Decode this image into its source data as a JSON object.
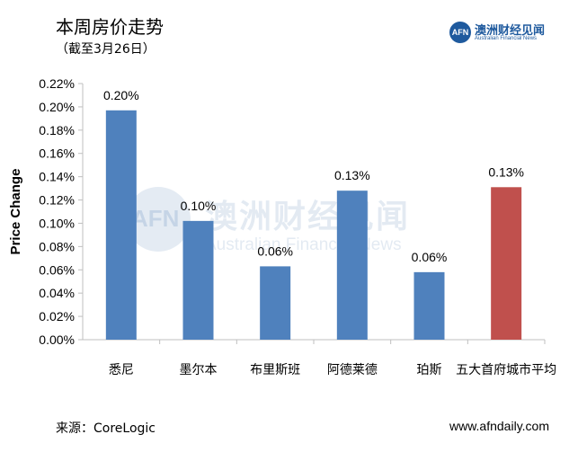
{
  "header": {
    "title": "本周房价走势",
    "subtitle": "（截至3月26日）"
  },
  "logo": {
    "mark": "AFN",
    "name_cn": "澳洲财经见闻",
    "name_en": "Australian Financial News"
  },
  "watermark": {
    "mark": "AFN",
    "name_cn": "澳洲财经见闻",
    "name_en": "Australian Financial News"
  },
  "footer": {
    "source": "来源：CoreLogic",
    "url": "www.afndaily.com"
  },
  "colors": {
    "bar": "#4f81bd",
    "highlight": "#c0504d",
    "axis": "#bfbfbf"
  },
  "chart_data": {
    "type": "bar",
    "title": "",
    "xlabel": "",
    "ylabel": "Price Change",
    "categories": [
      "悉尼",
      "墨尔本",
      "布里斯班",
      "阿德莱德",
      "珀斯",
      "五大首府城市平均"
    ],
    "values": [
      0.197,
      0.102,
      0.063,
      0.128,
      0.058,
      0.131
    ],
    "data_labels": [
      "0.20%",
      "0.10%",
      "0.06%",
      "0.13%",
      "0.06%",
      "0.13%"
    ],
    "highlight_index": 5,
    "ylim": [
      0,
      0.22
    ],
    "yticks": [
      0,
      0.02,
      0.04,
      0.06,
      0.08,
      0.1,
      0.12,
      0.14,
      0.16,
      0.18,
      0.2,
      0.22
    ],
    "ytick_labels": [
      "0.00%",
      "0.02%",
      "0.04%",
      "0.06%",
      "0.08%",
      "0.10%",
      "0.12%",
      "0.14%",
      "0.16%",
      "0.18%",
      "0.20%",
      "0.22%"
    ],
    "grid": false,
    "legend": "none"
  }
}
